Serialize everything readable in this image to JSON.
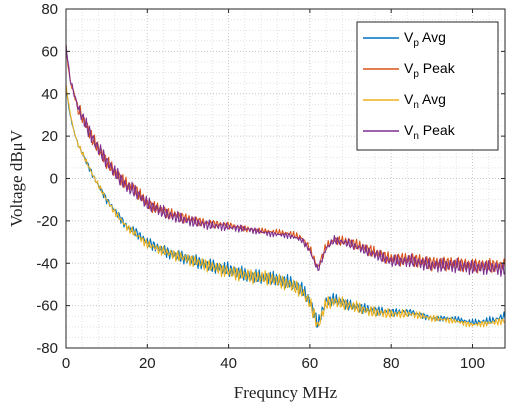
{
  "chart_data": {
    "type": "line",
    "title": "",
    "xlabel": "Frequncy MHz",
    "ylabel": "Voltage dBμV",
    "xlim": [
      0,
      108
    ],
    "ylim": [
      -80,
      80
    ],
    "x_ticks": [
      "0",
      "20",
      "40",
      "60",
      "80",
      "100"
    ],
    "y_ticks": [
      "80",
      "60",
      "40",
      "20",
      "0",
      "-20",
      "-40",
      "-60",
      "-80"
    ],
    "grid": "dotted major and minor",
    "legend_position": "top-right",
    "legend": [
      {
        "main": "V",
        "sub": "p",
        "rest": " Avg"
      },
      {
        "main": "V",
        "sub": "p",
        "rest": " Peak"
      },
      {
        "main": "V",
        "sub": "n",
        "rest": " Avg"
      },
      {
        "main": "V",
        "sub": "n",
        "rest": " Peak"
      }
    ],
    "series": [
      {
        "color": "#0072BD",
        "x": [
          0,
          1,
          2,
          3,
          5,
          7,
          10,
          12,
          15,
          17,
          20,
          25,
          30,
          35,
          40,
          45,
          50,
          55,
          58,
          60,
          61,
          62,
          63,
          64,
          66,
          70,
          75,
          80,
          85,
          90,
          95,
          100,
          105,
          108
        ],
        "y": [
          43,
          30,
          22,
          16,
          8,
          0,
          -10,
          -15,
          -23,
          -25,
          -30,
          -35,
          -38,
          -41,
          -43,
          -46,
          -47,
          -49,
          -52,
          -58,
          -63,
          -69,
          -63,
          -58,
          -57,
          -60,
          -62,
          -63,
          -63,
          -66,
          -66,
          -68,
          -67,
          -65
        ]
      },
      {
        "color": "#D95319",
        "x": [
          0,
          1,
          2,
          3,
          5,
          7,
          10,
          12,
          15,
          17,
          20,
          25,
          30,
          35,
          40,
          45,
          50,
          55,
          58,
          60,
          61,
          62,
          63,
          64,
          66,
          70,
          75,
          80,
          85,
          90,
          95,
          100,
          105,
          108
        ],
        "y": [
          62,
          46,
          40,
          33,
          25,
          17,
          8,
          3,
          -3,
          -5,
          -12,
          -16,
          -19,
          -21,
          -22,
          -24,
          -25,
          -26,
          -28,
          -33,
          -38,
          -42,
          -37,
          -32,
          -29,
          -30,
          -34,
          -38,
          -38,
          -40,
          -40,
          -41,
          -41,
          -41
        ]
      },
      {
        "color": "#EDB120",
        "x": [
          0,
          1,
          2,
          3,
          5,
          7,
          10,
          12,
          15,
          17,
          20,
          25,
          30,
          35,
          40,
          45,
          50,
          55,
          58,
          60,
          61,
          62,
          63,
          64,
          66,
          70,
          75,
          80,
          85,
          90,
          95,
          100,
          105,
          108
        ],
        "y": [
          44,
          31,
          22,
          16,
          8,
          0,
          -10,
          -16,
          -23,
          -26,
          -31,
          -35,
          -38,
          -41,
          -44,
          -46,
          -47,
          -50,
          -53,
          -59,
          -64,
          -70,
          -64,
          -59,
          -58,
          -60,
          -63,
          -64,
          -64,
          -66,
          -67,
          -69,
          -68,
          -67
        ]
      },
      {
        "color": "#7E2F8E",
        "x": [
          0,
          1,
          2,
          3,
          5,
          7,
          10,
          12,
          15,
          17,
          20,
          25,
          30,
          35,
          40,
          45,
          50,
          55,
          58,
          60,
          61,
          62,
          63,
          64,
          66,
          70,
          75,
          80,
          85,
          90,
          95,
          100,
          105,
          108
        ],
        "y": [
          63,
          47,
          40,
          33,
          25,
          17,
          8,
          3,
          -4,
          -6,
          -12,
          -17,
          -20,
          -22,
          -23,
          -24,
          -26,
          -27,
          -29,
          -34,
          -39,
          -43,
          -38,
          -33,
          -29,
          -31,
          -35,
          -39,
          -39,
          -41,
          -41,
          -42,
          -42,
          -43
        ]
      }
    ]
  }
}
